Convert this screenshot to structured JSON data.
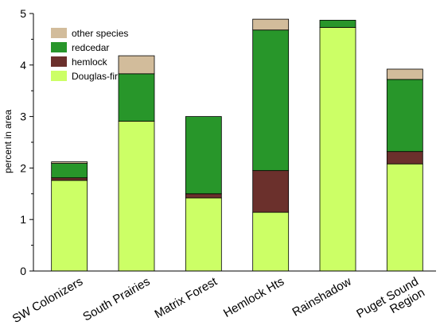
{
  "chart_data": {
    "type": "bar",
    "stacked": true,
    "ylabel": "percent in area",
    "ylim": [
      0,
      5
    ],
    "yticks": [
      0,
      1,
      2,
      3,
      4,
      5
    ],
    "ytick_labels": [
      "0",
      "1",
      "2",
      "3",
      "4",
      "5"
    ],
    "categories": [
      "SW Colonizers",
      "South Prairies",
      "Matrix Forest",
      "Hemlock Hts",
      "Rainshadow",
      "Puget Sound\nRegion"
    ],
    "series": [
      {
        "name": "Douglas-fir",
        "color": "#ccff66",
        "values": [
          1.76,
          2.91,
          1.42,
          1.14,
          4.73,
          2.08
        ]
      },
      {
        "name": "hemlock",
        "color": "#6b302c",
        "values": [
          0.05,
          0.0,
          0.08,
          0.81,
          0.0,
          0.24
        ]
      },
      {
        "name": "redcedar",
        "color": "#28962a",
        "values": [
          0.28,
          0.92,
          1.5,
          2.73,
          0.14,
          1.4
        ]
      },
      {
        "name": "other species",
        "color": "#d2bc9b",
        "values": [
          0.03,
          0.35,
          0.0,
          0.21,
          0.0,
          0.2
        ]
      }
    ],
    "legend_placement": "top-left",
    "grid": false
  }
}
